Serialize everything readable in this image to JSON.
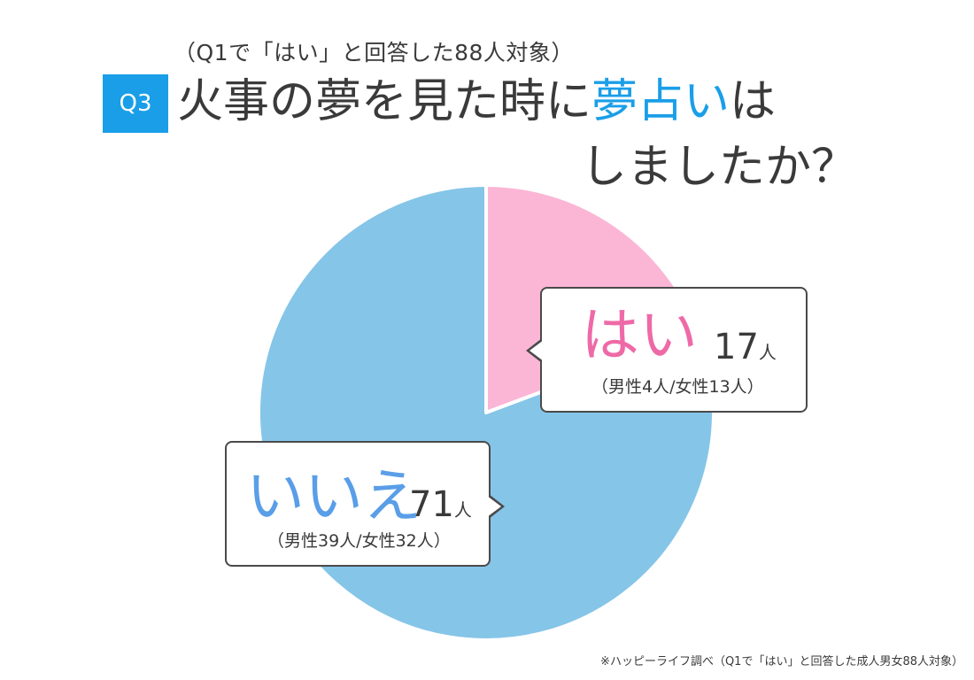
{
  "header": {
    "subtitle": "（Q1で「はい」と回答した88人対象）",
    "badge": "Q3",
    "title_part1": "火事の夢を見た時に",
    "title_accent": "夢占い",
    "title_part2": "は",
    "title_line2": "しましたか？"
  },
  "colors": {
    "accent": "#1a9ee8",
    "yes_slice": "#fbb6d6",
    "no_slice": "#85c5e8",
    "yes_text": "#ee6aa7",
    "no_text": "#5a9ee8"
  },
  "chart_data": {
    "type": "pie",
    "total": 88,
    "slices": [
      {
        "label": "はい",
        "value": 17,
        "unit": "人",
        "breakdown": "（男性4人/女性13人）",
        "color": "#fbb6d6"
      },
      {
        "label": "いいえ",
        "value": 71,
        "unit": "人",
        "breakdown": "（男性39人/女性32人）",
        "color": "#85c5e8"
      }
    ]
  },
  "footnote": "※ハッピーライフ調べ（Q1で「はい」と回答した成人男女88人対象）"
}
